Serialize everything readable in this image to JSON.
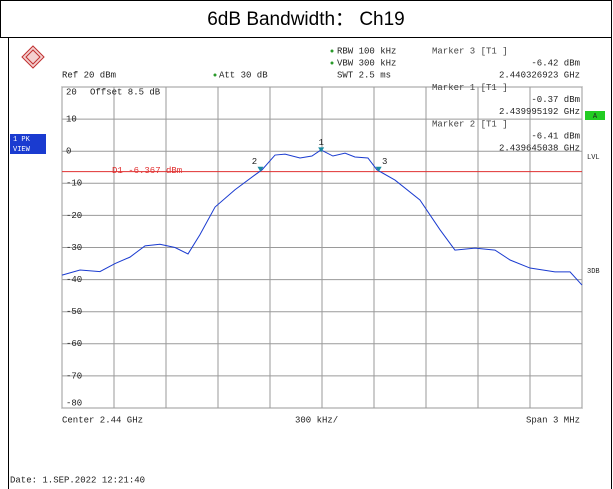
{
  "chart_data": {
    "type": "line",
    "title": "6dB Bandwidth： Ch19",
    "settings": {
      "rbw": "RBW 100 kHz",
      "vbw": "VBW 300 kHz",
      "swt": "SWT 2.5 ms",
      "ref": "Ref  20 dBm",
      "att": "Att  30 dB",
      "offset": "Offset   8.5 dB"
    },
    "side_labels": {
      "trace": "1 PK",
      "view": "VIEW",
      "a": "A",
      "lvl": "LVL",
      "db3": "3DB"
    },
    "center": "Center  2.44 GHz",
    "per_div": "300 kHz/",
    "span": "Span  3 MHz",
    "date": "Date: 1.SEP.2022  12:21:40",
    "xlim": [
      2.4385,
      2.4415
    ],
    "xticks": [
      2.4385,
      2.4388,
      2.4391,
      2.4394,
      2.4397,
      2.44,
      2.4403,
      2.4406,
      2.4409,
      2.4412,
      2.4415
    ],
    "ylim": [
      -80,
      20
    ],
    "yticks": [
      20,
      10,
      0,
      -10,
      -20,
      -30,
      -40,
      -50,
      -60,
      -70,
      -80
    ],
    "grid": true,
    "display_line": {
      "label": "D1 -6.367 dBm",
      "value": -6.367,
      "color": "#e03030"
    },
    "series": [
      {
        "color": "#1a3bd0",
        "x": [
          2.4385,
          2.438604,
          2.438719,
          2.438806,
          2.438892,
          2.438979,
          2.439065,
          2.439152,
          2.439227,
          2.439296,
          2.439383,
          2.439498,
          2.439613,
          2.439654,
          2.439729,
          2.439787,
          2.439873,
          2.439942,
          2.439994,
          2.440063,
          2.440133,
          2.44019,
          2.440265,
          2.440317,
          2.440421,
          2.440565,
          2.440681,
          2.440767,
          2.440883,
          2.440998,
          2.441085,
          2.4412,
          2.441344,
          2.441431,
          2.4415
        ],
        "values": [
          -38.6,
          -37,
          -37.5,
          -35,
          -33,
          -29.5,
          -29,
          -30,
          -32,
          -26,
          -17.4,
          -12,
          -7.4,
          -5.8,
          -1.2,
          -0.9,
          -2.1,
          -1.5,
          0.4,
          -1.5,
          -0.6,
          -1.8,
          -2.1,
          -5.8,
          -9,
          -15.2,
          -24.5,
          -30.8,
          -30.2,
          -30.8,
          -33.9,
          -36.4,
          -37.6,
          -37.6,
          -41.7
        ]
      }
    ],
    "markers": [
      {
        "id": "3",
        "name": "Marker 3 [T1 ]",
        "value": -6.42,
        "value_label": "-6.42 dBm",
        "x": 2.440326923,
        "x_label": "2.440326923 GHz"
      },
      {
        "id": "1",
        "name": "Marker 1 [T1 ]",
        "value": -0.37,
        "value_label": "-0.37 dBm",
        "x": 2.439995192,
        "x_label": "2.439995192 GHz"
      },
      {
        "id": "2",
        "name": "Marker 2 [T1 ]",
        "value": -6.41,
        "value_label": "-6.41 dBm",
        "x": 2.439645038,
        "x_label": "2.439645038 GHz"
      }
    ]
  }
}
